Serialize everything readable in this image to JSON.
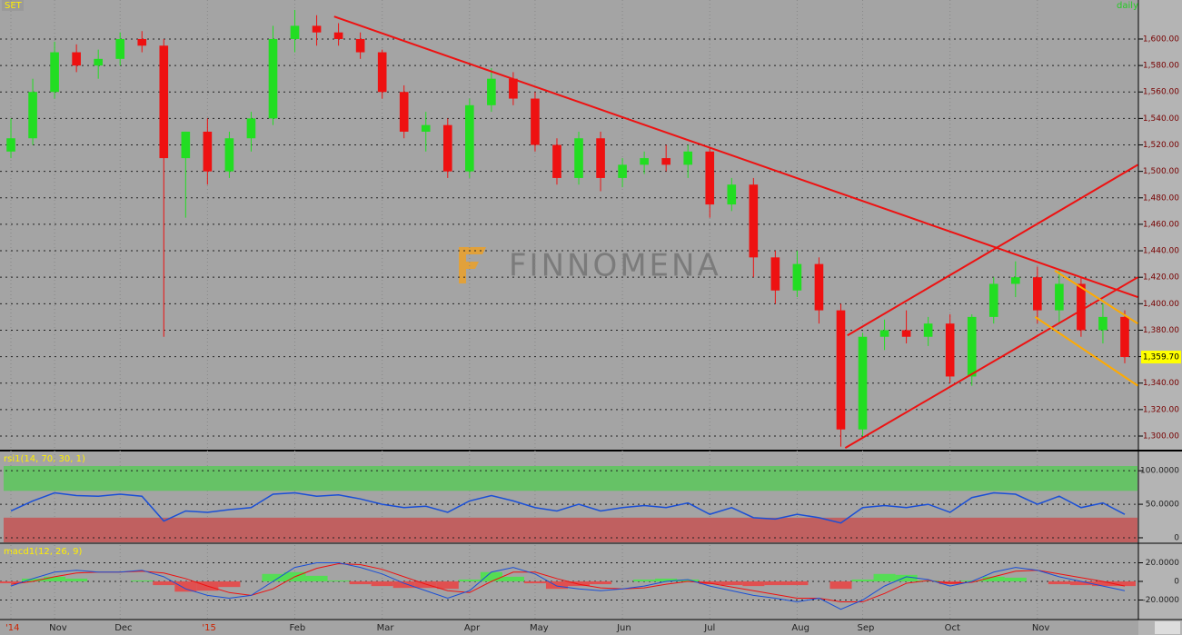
{
  "chart_data": [
    {
      "type": "candlestick",
      "symbol": "SET",
      "period": "daily",
      "watermark": "FINNOMENA",
      "categories": [
        "'14",
        null,
        "Nov",
        null,
        null,
        "Dec",
        null,
        null,
        null,
        "'15",
        null,
        null,
        null,
        "Feb",
        null,
        null,
        null,
        "Mar",
        null,
        null,
        null,
        "Apr",
        null,
        null,
        "May",
        null,
        null,
        null,
        "Jun",
        null,
        null,
        null,
        "Jul",
        null,
        null,
        null,
        "Aug",
        null,
        null,
        "Sep",
        null,
        null,
        null,
        "Oct",
        null,
        null,
        null,
        "Nov",
        null,
        null,
        null,
        null
      ],
      "open": [
        1515,
        1525,
        1560,
        1590,
        1580,
        1585,
        1600,
        1595,
        1510,
        1530,
        1500,
        1525,
        1540,
        1600,
        1610,
        1605,
        1600,
        1590,
        1560,
        1530,
        1535,
        1500,
        1550,
        1570,
        1555,
        1520,
        1495,
        1525,
        1495,
        1505,
        1510,
        1505,
        1515,
        1475,
        1490,
        1435,
        1410,
        1430,
        1395,
        1305,
        1375,
        1380,
        1375,
        1385,
        1345,
        1390,
        1415,
        1420,
        1395,
        1415,
        1380,
        1390
      ],
      "high": [
        1540,
        1570,
        1598,
        1596,
        1592,
        1605,
        1606,
        1600,
        1530,
        1540,
        1530,
        1545,
        1610,
        1622,
        1618,
        1612,
        1605,
        1592,
        1565,
        1545,
        1540,
        1555,
        1578,
        1575,
        1560,
        1525,
        1530,
        1530,
        1510,
        1515,
        1520,
        1520,
        1518,
        1495,
        1495,
        1440,
        1440,
        1435,
        1400,
        1378,
        1388,
        1395,
        1390,
        1392,
        1392,
        1420,
        1432,
        1428,
        1425,
        1420,
        1400,
        1395
      ],
      "low": [
        1510,
        1520,
        1555,
        1575,
        1570,
        1580,
        1590,
        1375,
        1465,
        1490,
        1495,
        1515,
        1535,
        1590,
        1595,
        1595,
        1585,
        1555,
        1525,
        1515,
        1495,
        1495,
        1545,
        1550,
        1515,
        1490,
        1490,
        1485,
        1488,
        1498,
        1500,
        1495,
        1465,
        1470,
        1420,
        1400,
        1405,
        1385,
        1292,
        1300,
        1365,
        1370,
        1368,
        1340,
        1338,
        1385,
        1405,
        1385,
        1385,
        1375,
        1370,
        1355
      ],
      "close": [
        1525,
        1560,
        1590,
        1580,
        1585,
        1600,
        1595,
        1510,
        1530,
        1500,
        1525,
        1540,
        1600,
        1610,
        1605,
        1600,
        1590,
        1560,
        1530,
        1535,
        1500,
        1550,
        1570,
        1555,
        1520,
        1495,
        1525,
        1495,
        1505,
        1510,
        1505,
        1515,
        1475,
        1490,
        1435,
        1410,
        1430,
        1395,
        1305,
        1375,
        1380,
        1375,
        1385,
        1345,
        1390,
        1415,
        1420,
        1395,
        1415,
        1380,
        1390,
        1359.7
      ],
      "last_price": {
        "value": 1359.7,
        "label": "1,359.70"
      },
      "up_color": "#22dd22",
      "down_color": "#ee1111",
      "ylim": [
        1289.7,
        1629.5
      ],
      "yticks": [
        {
          "value": 1300,
          "label": "1,300.00"
        },
        {
          "value": 1320,
          "label": "1,320.00"
        },
        {
          "value": 1340,
          "label": "1,340.00"
        },
        {
          "value": 1360,
          "label": "1,360.00"
        },
        {
          "value": 1380,
          "label": "1,380.00"
        },
        {
          "value": 1400,
          "label": "1,400.00"
        },
        {
          "value": 1420,
          "label": "1,420.00"
        },
        {
          "value": 1440,
          "label": "1,440.00"
        },
        {
          "value": 1460,
          "label": "1,460.00"
        },
        {
          "value": 1480,
          "label": "1,480.00"
        },
        {
          "value": 1500,
          "label": "1,500.00"
        },
        {
          "value": 1520,
          "label": "1,520.00"
        },
        {
          "value": 1540,
          "label": "1,540.00"
        },
        {
          "value": 1560,
          "label": "1,560.00"
        },
        {
          "value": 1580,
          "label": "1,580.00"
        },
        {
          "value": 1600,
          "label": "1,600.00"
        }
      ],
      "grid": true,
      "trendlines": [
        {
          "color": "#ee1111",
          "from": [
            14.8,
            1617
          ],
          "to": [
            51.6,
            1405
          ]
        },
        {
          "color": "#ee1111",
          "from": [
            38.2,
            1291
          ],
          "to": [
            51.6,
            1420
          ]
        },
        {
          "color": "#ee1111",
          "from": [
            38.3,
            1376
          ],
          "to": [
            51.6,
            1505
          ]
        },
        {
          "color": "#ffaa00",
          "from": [
            47.8,
            1425
          ],
          "to": [
            51.6,
            1385
          ]
        },
        {
          "color": "#ffaa00",
          "from": [
            46.9,
            1390
          ],
          "to": [
            51.6,
            1338
          ]
        }
      ]
    },
    {
      "type": "line",
      "title": "rsi1(14, 70, 30, 1)",
      "color": "#1a4fd6",
      "values": [
        40,
        55,
        67,
        63,
        62,
        65,
        62,
        25,
        40,
        38,
        42,
        45,
        65,
        67,
        62,
        64,
        58,
        50,
        45,
        47,
        38,
        55,
        63,
        55,
        45,
        40,
        50,
        40,
        45,
        48,
        45,
        52,
        35,
        45,
        30,
        28,
        35,
        30,
        22,
        45,
        48,
        45,
        50,
        38,
        60,
        67,
        65,
        50,
        62,
        45,
        52,
        35
      ],
      "bands": [
        {
          "from": 70,
          "color": "#66c266"
        },
        {
          "to": 30,
          "color": "#c06060"
        }
      ],
      "ylim": [
        -6.8,
        126
      ],
      "yticks": [
        {
          "value": 100,
          "label": "100.0000"
        },
        {
          "value": 50,
          "label": "50.0000"
        },
        0
      ]
    },
    {
      "type": "macd",
      "title": "macd1(12, 26, 9)",
      "macd": [
        -5,
        3,
        10,
        12,
        10,
        10,
        12,
        5,
        -8,
        -15,
        -18,
        -15,
        0,
        15,
        20,
        20,
        15,
        8,
        -2,
        -10,
        -18,
        -10,
        10,
        15,
        8,
        -5,
        -8,
        -10,
        -8,
        -5,
        0,
        2,
        -5,
        -10,
        -15,
        -18,
        -22,
        -18,
        -30,
        -20,
        -5,
        5,
        2,
        -5,
        0,
        10,
        15,
        12,
        5,
        0,
        -5,
        -10
      ],
      "signal": [
        -3,
        0,
        5,
        9,
        10,
        10,
        11,
        9,
        3,
        -5,
        -12,
        -15,
        -8,
        5,
        14,
        19,
        18,
        13,
        5,
        -3,
        -10,
        -12,
        0,
        10,
        10,
        3,
        -3,
        -7,
        -8,
        -7,
        -3,
        0,
        -2,
        -6,
        -10,
        -14,
        -18,
        -18,
        -22,
        -22,
        -13,
        -2,
        1,
        -2,
        -1,
        5,
        11,
        12,
        8,
        4,
        0,
        -5
      ],
      "histogram": [
        -2,
        3,
        5,
        3,
        0,
        0,
        1,
        -4,
        -11,
        -10,
        -6,
        0,
        8,
        10,
        6,
        1,
        -3,
        -5,
        -7,
        -7,
        -8,
        2,
        10,
        5,
        -2,
        -8,
        -5,
        -3,
        0,
        2,
        3,
        2,
        -3,
        -4,
        -5,
        -4,
        -4,
        0,
        -8,
        2,
        8,
        7,
        1,
        -3,
        1,
        5,
        4,
        0,
        -3,
        -4,
        -5,
        -5
      ],
      "macd_color": "#1a4fd6",
      "signal_color": "#ee1111",
      "pos_color": "#55dd55",
      "neg_color": "#e05050",
      "ylim": [
        -40,
        40
      ],
      "yticks": [
        {
          "value": 20,
          "label": "20.0000"
        },
        0,
        {
          "value": -20,
          "label": "-20.0000"
        }
      ]
    }
  ]
}
